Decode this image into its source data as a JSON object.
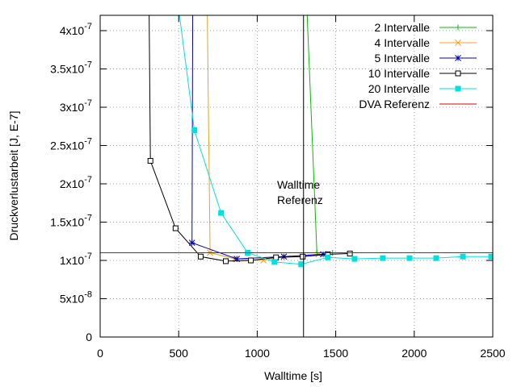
{
  "chart_data": {
    "type": "line",
    "title": "",
    "xlabel": "Walltime [s]",
    "ylabel": "Druckverlustarbeit [J, E-7]",
    "xlim": [
      0,
      2500
    ],
    "ylim": [
      0,
      4.2e-07
    ],
    "grid": true,
    "legend_position": "top-right",
    "x_ticks": [
      {
        "value": 0,
        "label": "0"
      },
      {
        "value": 500,
        "label": "500"
      },
      {
        "value": 1000,
        "label": "1000"
      },
      {
        "value": 1500,
        "label": "1500"
      },
      {
        "value": 2000,
        "label": "2000"
      },
      {
        "value": 2500,
        "label": "2500"
      }
    ],
    "y_ticks": [
      {
        "value": 0,
        "mant": "0",
        "exp": ""
      },
      {
        "value": 5e-08,
        "mant": "5x10",
        "exp": "-8"
      },
      {
        "value": 1e-07,
        "mant": "1x10",
        "exp": "-7"
      },
      {
        "value": 1.5e-07,
        "mant": "1.5x10",
        "exp": "-7"
      },
      {
        "value": 2e-07,
        "mant": "2x10",
        "exp": "-7"
      },
      {
        "value": 2.5e-07,
        "mant": "2.5x10",
        "exp": "-7"
      },
      {
        "value": 3e-07,
        "mant": "3x10",
        "exp": "-7"
      },
      {
        "value": 3.5e-07,
        "mant": "3.5x10",
        "exp": "-7"
      },
      {
        "value": 4e-07,
        "mant": "4x10",
        "exp": "-7"
      }
    ],
    "series": [
      {
        "name": "2 Intervalle",
        "color": "#00c000",
        "marker": "plus",
        "x": [
          1310,
          1380,
          1480
        ],
        "y": [
          4.6e-07,
          1.1e-07,
          1.1e-07
        ]
      },
      {
        "name": "4 Intervalle",
        "color": "#f0a020",
        "marker": "cross",
        "x": [
          680,
          700,
          860,
          1040,
          1170,
          1390
        ],
        "y": [
          4.6e-07,
          1.1e-07,
          1.02e-07,
          1e-07,
          1.05e-07,
          1.08e-07
        ]
      },
      {
        "name": "5 Intervalle",
        "color": "#0000c0",
        "marker": "star",
        "x": [
          590,
          585,
          870,
          1170,
          1420
        ],
        "y": [
          4.6e-07,
          1.23e-07,
          1.02e-07,
          1.05e-07,
          1.08e-07
        ]
      },
      {
        "name": "10 Intervalle",
        "color": "#000000",
        "marker": "square-open",
        "x": [
          310,
          320,
          480,
          640,
          800,
          960,
          1120,
          1290,
          1450,
          1590
        ],
        "y": [
          4.6e-07,
          2.3e-07,
          1.42e-07,
          1.05e-07,
          9.9e-08,
          1e-07,
          1.04e-07,
          1.05e-07,
          1.08e-07,
          1.09e-07
        ]
      },
      {
        "name": "20 Intervalle",
        "color": "#00e0e0",
        "marker": "square-filled",
        "x": [
          480,
          600,
          770,
          940,
          1110,
          1280,
          1450,
          1620,
          1800,
          1970,
          2140,
          2310,
          2490
        ],
        "y": [
          4.6e-07,
          2.7e-07,
          1.62e-07,
          1.1e-07,
          9.8e-08,
          9.5e-08,
          1.04e-07,
          1.02e-07,
          1.03e-07,
          1.03e-07,
          1.03e-07,
          1.05e-07,
          1.05e-07
        ]
      },
      {
        "name": "DVA Referenz",
        "color": "#e00000",
        "marker": "none",
        "x": [
          0,
          2500
        ],
        "y": [
          1.1e-07,
          1.1e-07
        ]
      }
    ],
    "reference_line": {
      "x": 1295,
      "label_line1": "Walltime",
      "label_line2": "Referenz"
    }
  }
}
